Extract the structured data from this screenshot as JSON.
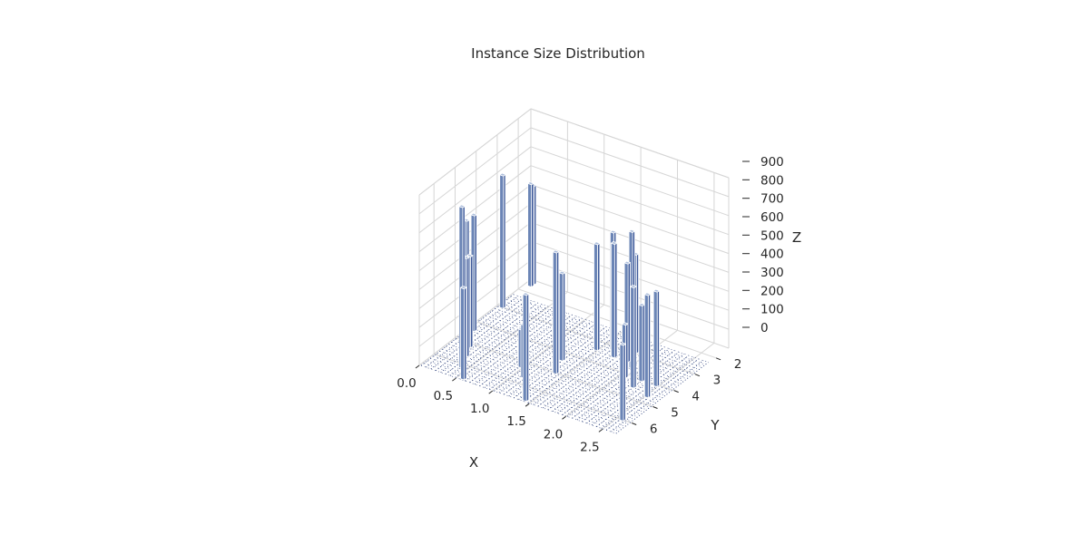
{
  "chart_data": {
    "type": "bar3d",
    "title": "Instance Size Distribution",
    "xlabel": "X",
    "ylabel": "Y",
    "zlabel": "Z",
    "xlim": [
      0.0,
      2.7
    ],
    "ylim": [
      1.4,
      6.7
    ],
    "zlim": [
      0,
      900
    ],
    "x_ticks": [
      "0.0",
      "0.5",
      "1.0",
      "1.5",
      "2.0",
      "2.5"
    ],
    "y_ticks": [
      "2",
      "3",
      "4",
      "5",
      "6"
    ],
    "z_ticks": [
      "0",
      "100",
      "200",
      "300",
      "400",
      "500",
      "600",
      "700",
      "800",
      "900"
    ],
    "grid": true,
    "bar_color": "#6b85b6",
    "bars": [
      {
        "x": 0.05,
        "y": 1.5,
        "z": 520
      },
      {
        "x": 0.05,
        "y": 1.62,
        "z": 540
      },
      {
        "x": 0.05,
        "y": 2.95,
        "z": 700
      },
      {
        "x": 0.06,
        "y": 4.35,
        "z": 610
      },
      {
        "x": 0.1,
        "y": 4.85,
        "z": 630
      },
      {
        "x": 0.22,
        "y": 5.1,
        "z": 480
      },
      {
        "x": 0.3,
        "y": 5.55,
        "z": 520
      },
      {
        "x": 0.4,
        "y": 6.1,
        "z": 850
      },
      {
        "x": 0.55,
        "y": 6.55,
        "z": 480
      },
      {
        "x": 0.95,
        "y": 5.2,
        "z": 200
      },
      {
        "x": 1.1,
        "y": 5.6,
        "z": 280
      },
      {
        "x": 1.25,
        "y": 4.3,
        "z": 460
      },
      {
        "x": 1.35,
        "y": 4.95,
        "z": 640
      },
      {
        "x": 1.4,
        "y": 6.55,
        "z": 560
      },
      {
        "x": 1.45,
        "y": 3.35,
        "z": 560
      },
      {
        "x": 1.6,
        "y": 3.1,
        "z": 620
      },
      {
        "x": 1.7,
        "y": 3.4,
        "z": 600
      },
      {
        "x": 1.85,
        "y": 2.9,
        "z": 520
      },
      {
        "x": 1.88,
        "y": 3.4,
        "z": 520
      },
      {
        "x": 2.0,
        "y": 3.6,
        "z": 720
      },
      {
        "x": 2.05,
        "y": 4.1,
        "z": 280
      },
      {
        "x": 2.25,
        "y": 4.0,
        "z": 400
      },
      {
        "x": 2.25,
        "y": 4.4,
        "z": 530
      },
      {
        "x": 2.45,
        "y": 4.0,
        "z": 500
      },
      {
        "x": 2.5,
        "y": 4.6,
        "z": 540
      },
      {
        "x": 2.55,
        "y": 5.95,
        "z": 400
      }
    ]
  }
}
